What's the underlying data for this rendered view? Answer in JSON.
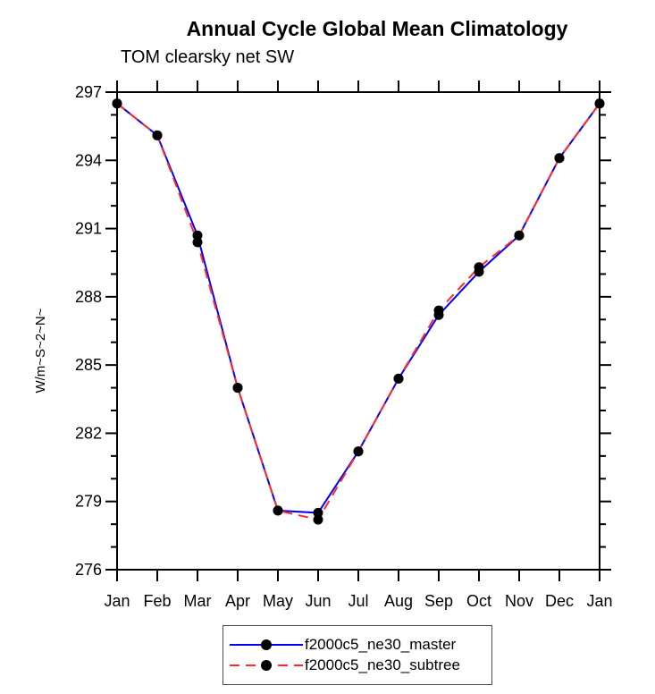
{
  "title": "Annual Cycle Global Mean Climatology",
  "subtitle": "TOM clearsky net SW",
  "chart_data": {
    "type": "line",
    "title": "Annual Cycle Global Mean Climatology",
    "subtitle": "TOM clearsky net SW",
    "xlabel": "",
    "ylabel": "W/m~S~2~N~",
    "categories": [
      "Jan",
      "Feb",
      "Mar",
      "Apr",
      "May",
      "Jun",
      "Jul",
      "Aug",
      "Sep",
      "Oct",
      "Nov",
      "Dec",
      "Jan"
    ],
    "ylim": [
      276,
      297
    ],
    "y_ticks_major": [
      276,
      279,
      282,
      285,
      288,
      291,
      294,
      297
    ],
    "y_tick_minor_step": 1,
    "grid": false,
    "frame": true,
    "tick_direction": "out",
    "legend_position": "bottom-center",
    "marker": "filled-circle",
    "marker_color": "#000000",
    "series": [
      {
        "name": "f2000c5_ne30_master",
        "color": "#0000ff",
        "line_style": "solid",
        "values": [
          296.5,
          295.1,
          290.7,
          284.0,
          278.6,
          278.5,
          281.2,
          284.4,
          287.2,
          289.1,
          290.7,
          294.1,
          296.5
        ]
      },
      {
        "name": "f2000c5_ne30_subtree",
        "color": "#ff2a2a",
        "line_style": "dashed",
        "values": [
          296.5,
          295.1,
          290.4,
          284.0,
          278.6,
          278.2,
          281.2,
          284.4,
          287.4,
          289.3,
          290.7,
          294.1,
          296.5
        ]
      }
    ]
  }
}
